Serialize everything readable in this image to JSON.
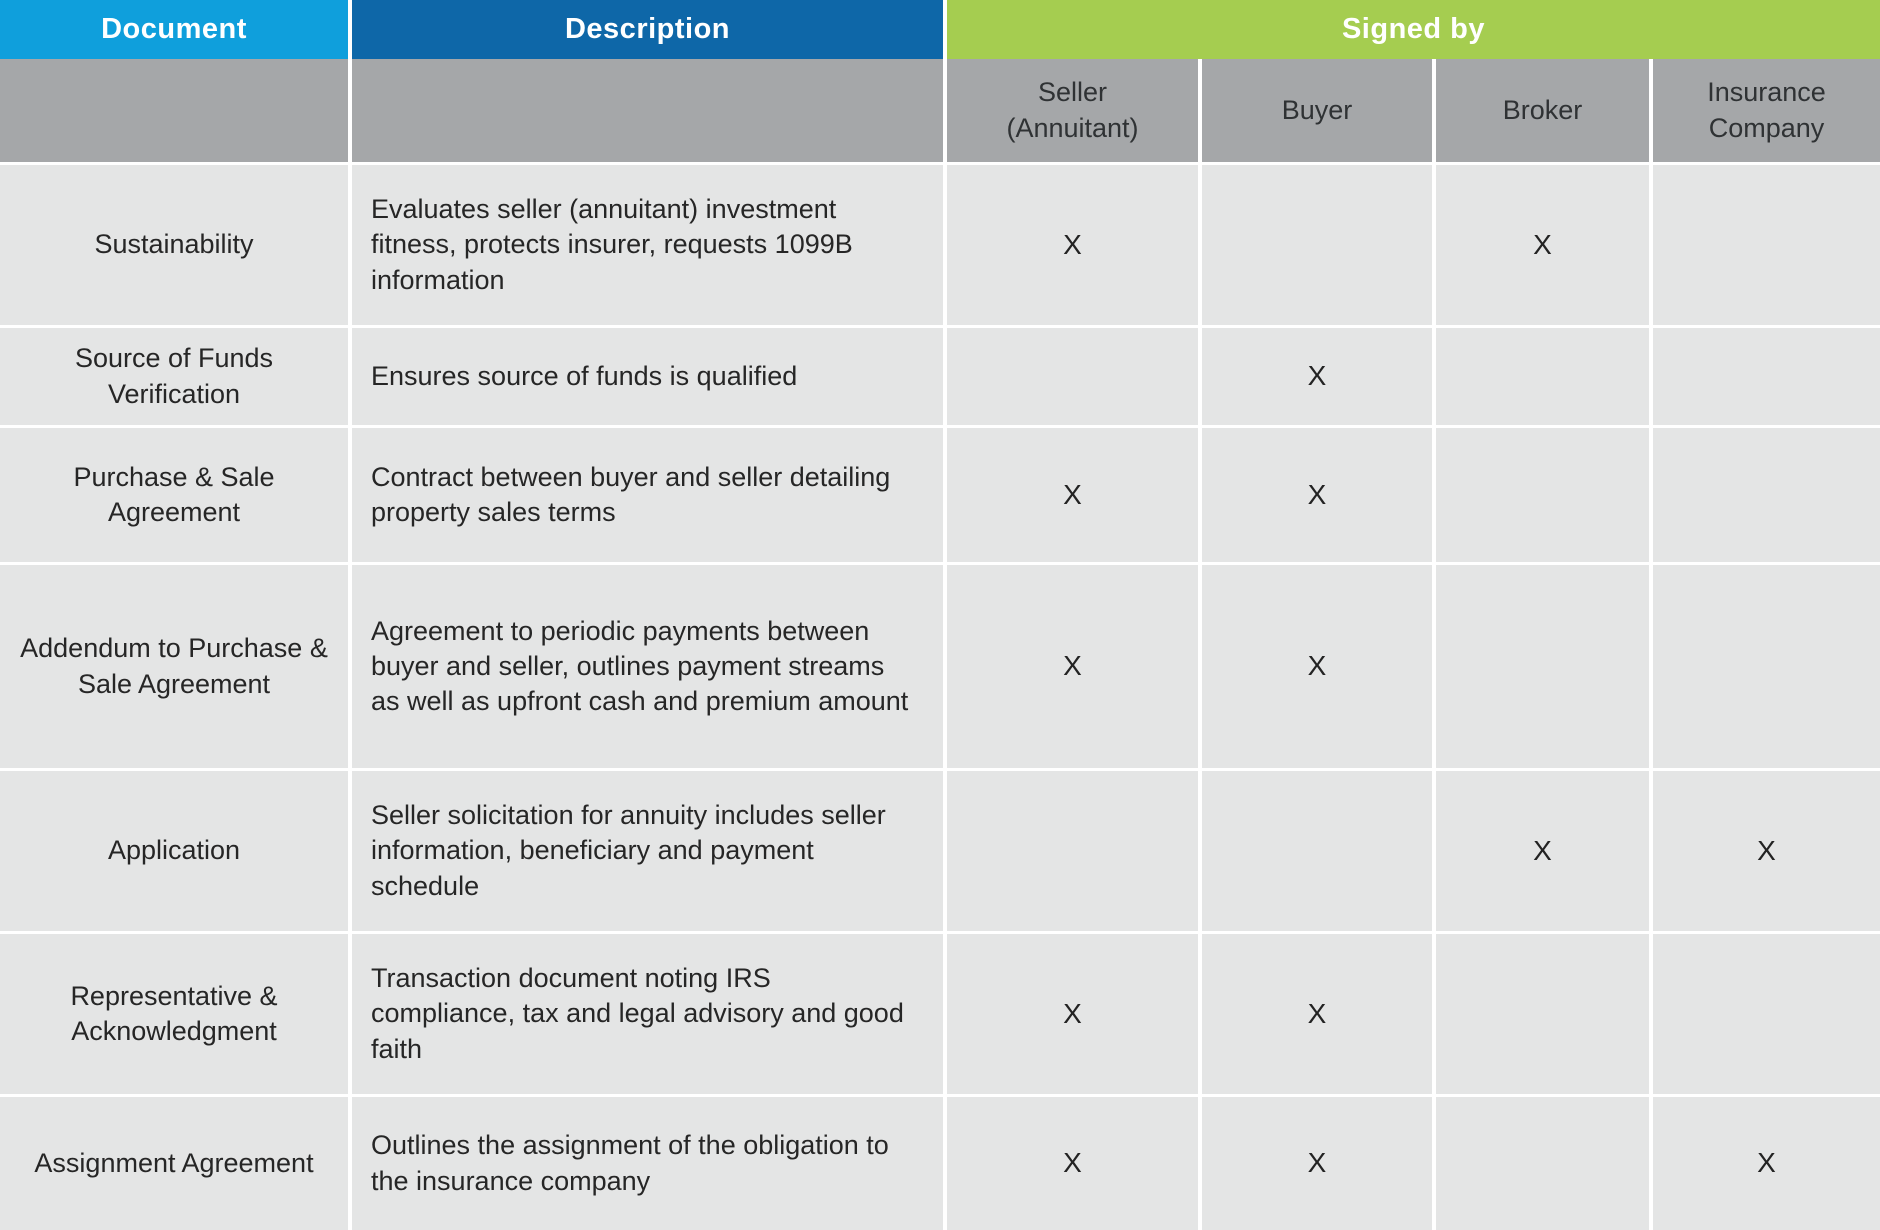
{
  "header": {
    "document": "Document",
    "description": "Description",
    "signed_by": "Signed by",
    "signers": [
      "Seller (Annuitant)",
      "Buyer",
      "Broker",
      "Insurance Company"
    ]
  },
  "rows": [
    {
      "document": "Sustainability",
      "description": "Evaluates seller (annuitant) investment fitness, protects insurer, requests 1099B information",
      "marks": [
        "X",
        "",
        "X",
        ""
      ]
    },
    {
      "document": "Source of Funds Verification",
      "description": "Ensures source of funds is qualified",
      "marks": [
        "",
        "X",
        "",
        ""
      ]
    },
    {
      "document": "Purchase & Sale Agreement",
      "description": "Contract between buyer and seller detailing property sales terms",
      "marks": [
        "X",
        "X",
        "",
        ""
      ]
    },
    {
      "document": "Addendum to Purchase & Sale Agreement",
      "description": "Agreement to periodic payments between buyer and seller, outlines payment streams as well as upfront cash and premium amount",
      "marks": [
        "X",
        "X",
        "",
        ""
      ]
    },
    {
      "document": "Application",
      "description": "Seller solicitation for annuity includes seller information, beneficiary and payment schedule",
      "marks": [
        "",
        "",
        "X",
        "X"
      ]
    },
    {
      "document": "Representative & Acknowledgment",
      "description": "Transaction document noting IRS compliance, tax and legal advisory and good faith",
      "marks": [
        "X",
        "X",
        "",
        ""
      ]
    },
    {
      "document": "Assignment Agreement",
      "description": "Outlines the assignment of the obligation to the insurance company",
      "marks": [
        "X",
        "X",
        "",
        "X"
      ]
    }
  ],
  "colors": {
    "blue_light": "#0f9fdc",
    "blue_dark": "#0e67a8",
    "green": "#a5cd50",
    "gray_subheader": "#a5a7a9",
    "row_bg": "#e4e5e5",
    "body_text": "#262626",
    "header_text": "#ffffff",
    "divider": "#ffffff"
  }
}
